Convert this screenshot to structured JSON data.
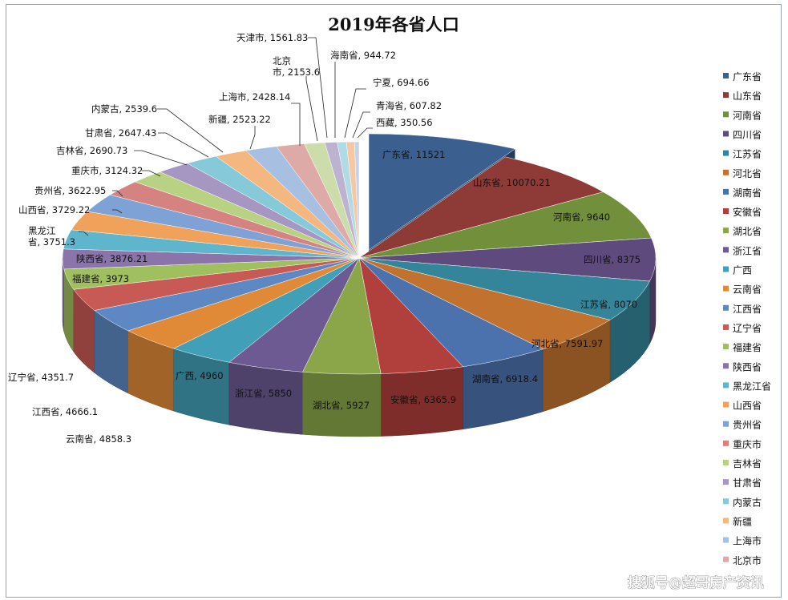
{
  "chart_data": {
    "type": "pie",
    "title": "2019年各省人口",
    "legend_position": "right",
    "style": "3d-exploded-first",
    "categories": [
      "广东省",
      "山东省",
      "河南省",
      "四川省",
      "江苏省",
      "河北省",
      "湖南省",
      "安徽省",
      "湖北省",
      "浙江省",
      "广西",
      "云南省",
      "江西省",
      "辽宁省",
      "福建省",
      "陕西省",
      "黑龙江省",
      "山西省",
      "贵州省",
      "重庆市",
      "吉林省",
      "甘肃省",
      "内蒙古",
      "新疆",
      "上海市",
      "北京市",
      "天津市",
      "海南省",
      "宁夏",
      "青海省",
      "西藏"
    ],
    "values": [
      11521,
      10070.21,
      9640,
      8375,
      8070,
      7591.97,
      6918.4,
      6365.9,
      5927,
      5850,
      4960,
      4858.3,
      4666.1,
      4351.7,
      3973,
      3876.21,
      3751.3,
      3729.22,
      3622.95,
      3124.32,
      2690.73,
      2647.43,
      2539.6,
      2523.22,
      2428.14,
      2153.6,
      1561.83,
      944.72,
      694.66,
      607.82,
      350.56
    ],
    "data_labels": [
      "广东省, 11521",
      "山东省, 10070.21",
      "河南省, 9640",
      "四川省, 8375",
      "江苏省, 8070",
      "河北省, 7591.97",
      "湖南省, 6918.4",
      "安徽省, 6365.9",
      "湖北省, 5927",
      "浙江省, 5850",
      "广西, 4960",
      "云南省, 4858.3",
      "江西省, 4666.1",
      "辽宁省, 4351.7",
      "福建省, 3973",
      "陕西省, 3876.21",
      "黑龙江省, 3751.3",
      "山西省, 3729.22",
      "贵州省, 3622.95",
      "重庆市, 3124.32",
      "吉林省, 2690.73",
      "甘肃省, 2647.43",
      "内蒙古, 2539.6",
      "新疆, 2523.22",
      "上海市, 2428.14",
      "北京市, 2153.6",
      "天津市, 1561.83",
      "海南省, 944.72",
      "宁夏, 694.66",
      "青海省, 607.82",
      "西藏, 350.56"
    ],
    "legend_entries": [
      "广东省",
      "山东省",
      "河南省",
      "四川省",
      "江苏省",
      "河北省",
      "湖南省",
      "安徽省",
      "湖北省",
      "浙江省",
      "广西",
      "云南省",
      "江西省",
      "辽宁省",
      "福建省",
      "陕西省",
      "黑龙江省",
      "山西省",
      "贵州省",
      "重庆市",
      "吉林省",
      "甘肃省",
      "内蒙古",
      "新疆",
      "上海市",
      "北京市"
    ],
    "colors": [
      "#3b5f8e",
      "#8e3a37",
      "#728f3b",
      "#5e4a7c",
      "#35859a",
      "#c1722f",
      "#4b72ad",
      "#b13f3b",
      "#8aa648",
      "#6d5a93",
      "#41a0b8",
      "#e08a38",
      "#5d88c3",
      "#c85a55",
      "#a0bf5e",
      "#8a74aa",
      "#5fb6cc",
      "#f0a25a",
      "#7ea1d6",
      "#d48380",
      "#b9d183",
      "#a596c2",
      "#86c9d9",
      "#f4b77f",
      "#a7bfe0",
      "#ddaaa7",
      "#ccdcaa",
      "#bdb3d1",
      "#b0dbe6",
      "#f6c8a2",
      "#c2d3ea"
    ]
  },
  "watermark": "搜狐号@超哥房产资讯"
}
